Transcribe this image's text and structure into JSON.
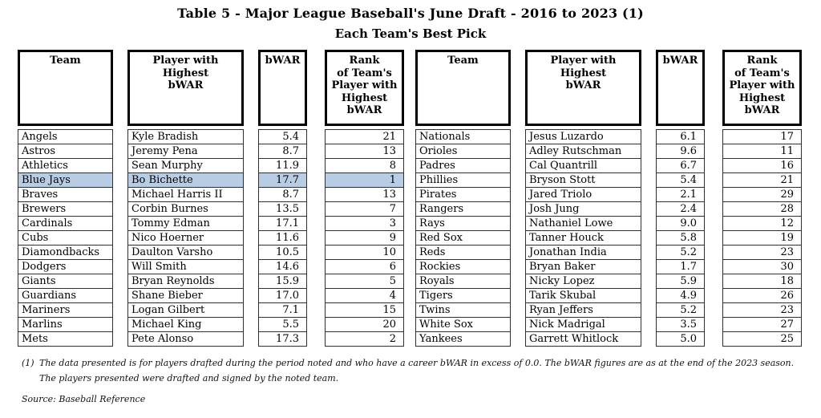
{
  "title": "Table 5 - Major League Baseball's June Draft - 2016 to 2023 (1)",
  "subtitle": "Each Team's Best Pick",
  "table": {
    "highlight_color": "#b8cce4",
    "columns": [
      {
        "id": "team",
        "header": "Team",
        "align": "left"
      },
      {
        "id": "player",
        "header": "Player with\nHighest\nbWAR",
        "align": "left"
      },
      {
        "id": "bwar",
        "header": "bWAR",
        "align": "right"
      },
      {
        "id": "rank",
        "header": "Rank\nof Team's\nPlayer with\nHighest\nbWAR",
        "align": "right"
      }
    ],
    "groups": [
      {
        "rows": [
          {
            "team": "Angels",
            "player": "Kyle Bradish",
            "bwar": "5.4",
            "rank": "21"
          },
          {
            "team": "Astros",
            "player": "Jeremy Pena",
            "bwar": "8.7",
            "rank": "13"
          },
          {
            "team": "Athletics",
            "player": "Sean Murphy",
            "bwar": "11.9",
            "rank": "8"
          },
          {
            "team": "Blue Jays",
            "player": "Bo Bichette",
            "bwar": "17.7",
            "rank": "1",
            "highlight": true
          },
          {
            "team": "Braves",
            "player": "Michael Harris II",
            "bwar": "8.7",
            "rank": "13"
          },
          {
            "team": "Brewers",
            "player": "Corbin Burnes",
            "bwar": "13.5",
            "rank": "7"
          },
          {
            "team": "Cardinals",
            "player": "Tommy Edman",
            "bwar": "17.1",
            "rank": "3"
          },
          {
            "team": "Cubs",
            "player": "Nico Hoerner",
            "bwar": "11.6",
            "rank": "9"
          },
          {
            "team": "Diamondbacks",
            "player": "Daulton Varsho",
            "bwar": "10.5",
            "rank": "10"
          },
          {
            "team": "Dodgers",
            "player": "Will Smith",
            "bwar": "14.6",
            "rank": "6"
          },
          {
            "team": "Giants",
            "player": "Bryan Reynolds",
            "bwar": "15.9",
            "rank": "5"
          },
          {
            "team": "Guardians",
            "player": "Shane Bieber",
            "bwar": "17.0",
            "rank": "4"
          },
          {
            "team": "Mariners",
            "player": "Logan Gilbert",
            "bwar": "7.1",
            "rank": "15"
          },
          {
            "team": "Marlins",
            "player": "Michael King",
            "bwar": "5.5",
            "rank": "20"
          },
          {
            "team": "Mets",
            "player": "Pete Alonso",
            "bwar": "17.3",
            "rank": "2"
          }
        ]
      },
      {
        "rows": [
          {
            "team": "Nationals",
            "player": "Jesus Luzardo",
            "bwar": "6.1",
            "rank": "17"
          },
          {
            "team": "Orioles",
            "player": "Adley Rutschman",
            "bwar": "9.6",
            "rank": "11"
          },
          {
            "team": "Padres",
            "player": "Cal Quantrill",
            "bwar": "6.7",
            "rank": "16"
          },
          {
            "team": "Phillies",
            "player": "Bryson Stott",
            "bwar": "5.4",
            "rank": "21"
          },
          {
            "team": "Pirates",
            "player": "Jared Triolo",
            "bwar": "2.1",
            "rank": "29"
          },
          {
            "team": "Rangers",
            "player": "Josh Jung",
            "bwar": "2.4",
            "rank": "28"
          },
          {
            "team": "Rays",
            "player": "Nathaniel Lowe",
            "bwar": "9.0",
            "rank": "12"
          },
          {
            "team": "Red Sox",
            "player": "Tanner Houck",
            "bwar": "5.8",
            "rank": "19"
          },
          {
            "team": "Reds",
            "player": "Jonathan India",
            "bwar": "5.2",
            "rank": "23"
          },
          {
            "team": "Rockies",
            "player": "Bryan Baker",
            "bwar": "1.7",
            "rank": "30"
          },
          {
            "team": "Royals",
            "player": "Nicky Lopez",
            "bwar": "5.9",
            "rank": "18"
          },
          {
            "team": "Tigers",
            "player": "Tarik Skubal",
            "bwar": "4.9",
            "rank": "26"
          },
          {
            "team": "Twins",
            "player": "Ryan Jeffers",
            "bwar": "5.2",
            "rank": "23"
          },
          {
            "team": "White Sox",
            "player": "Nick Madrigal",
            "bwar": "3.5",
            "rank": "27"
          },
          {
            "team": "Yankees",
            "player": "Garrett Whitlock",
            "bwar": "5.0",
            "rank": "25"
          }
        ]
      }
    ]
  },
  "footnotes": {
    "marker": "(1)",
    "line1": "The data presented is for players drafted during the period noted and who have a career bWAR in excess of 0.0. The bWAR figures are as at the end of the 2023 season.",
    "line2": "The players presented were drafted and signed by the noted team.",
    "source": "Source: Baseball Reference"
  }
}
